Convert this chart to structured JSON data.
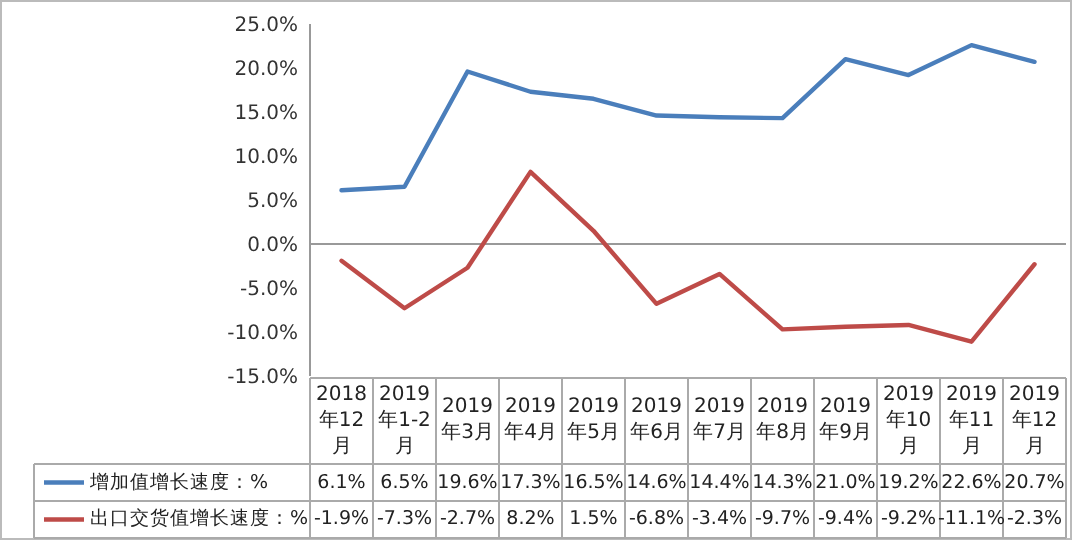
{
  "chart_data": {
    "type": "line",
    "categories": [
      "2018年12月",
      "2019年1-2月",
      "2019年3月",
      "2019年4月",
      "2019年5月",
      "2019年6月",
      "2019年7月",
      "2019年8月",
      "2019年9月",
      "2019年10月",
      "2019年11月",
      "2019年12月"
    ],
    "series": [
      {
        "name": "增加值增长速度：%",
        "color": "#4a7ebb",
        "values": [
          6.1,
          6.5,
          19.6,
          17.3,
          16.5,
          14.6,
          14.4,
          14.3,
          21.0,
          19.2,
          22.6,
          20.7
        ],
        "value_labels": [
          "6.1%",
          "6.5%",
          "19.6%",
          "17.3%",
          "16.5%",
          "14.6%",
          "14.4%",
          "14.3%",
          "21.0%",
          "19.2%",
          "22.6%",
          "20.7%"
        ]
      },
      {
        "name": "出口交货值增长速度：%",
        "color": "#be4b48",
        "values": [
          -1.9,
          -7.3,
          -2.7,
          8.2,
          1.5,
          -6.8,
          -3.4,
          -9.7,
          -9.4,
          -9.2,
          -11.1,
          -2.3
        ],
        "value_labels": [
          "-1.9%",
          "-7.3%",
          "-2.7%",
          "8.2%",
          "1.5%",
          "-6.8%",
          "-3.4%",
          "-9.7%",
          "-9.4%",
          "-9.2%",
          "-11.1%",
          "-2.3%"
        ]
      }
    ],
    "ylim": [
      -15,
      25
    ],
    "yticks": [
      {
        "value": -15,
        "label": "-15.0%"
      },
      {
        "value": -10,
        "label": "-10.0%"
      },
      {
        "value": -5,
        "label": "-5.0%"
      },
      {
        "value": 0,
        "label": "0.0%"
      },
      {
        "value": 5,
        "label": "5.0%"
      },
      {
        "value": 10,
        "label": "10.0%"
      },
      {
        "value": 15,
        "label": "15.0%"
      },
      {
        "value": 20,
        "label": "20.0%"
      },
      {
        "value": 25,
        "label": "25.0%"
      }
    ],
    "ref_lines": [
      {
        "axis": "y",
        "value": 0,
        "color": "#999999"
      }
    ],
    "legend": "bottom",
    "grid": false,
    "marker": "none",
    "line_style": "solid"
  }
}
